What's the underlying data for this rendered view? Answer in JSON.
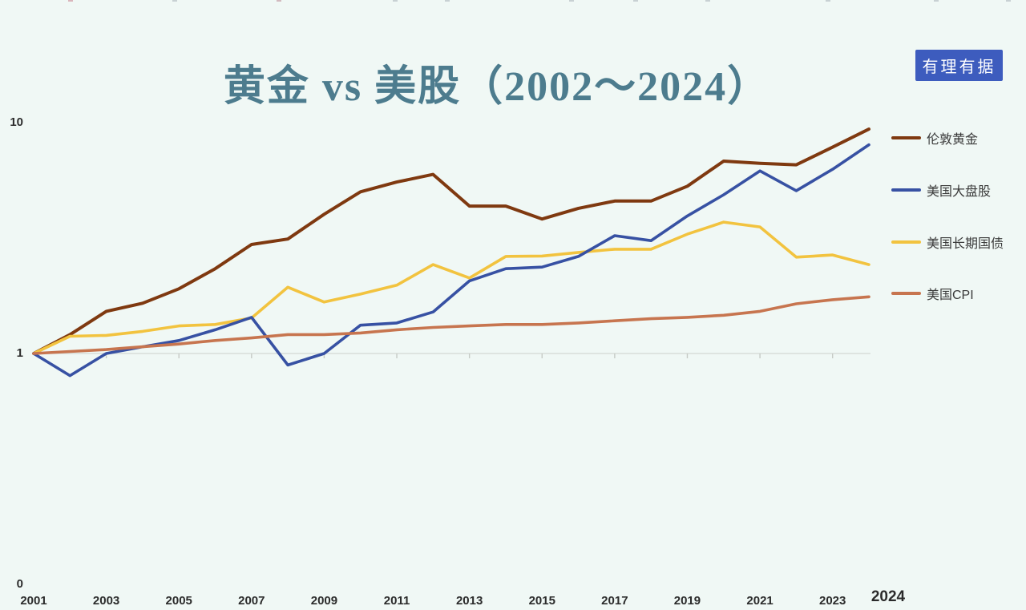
{
  "title": {
    "text": "黄金 vs 美股（2002～2024）"
  },
  "badge": {
    "text": "有理有据"
  },
  "colors": {
    "background": "#f0f8f5",
    "title": "#4d7c8e",
    "badge_bg": "#3d5cbe",
    "badge_text": "#ffffff",
    "gridline": "#d8ddd9",
    "tick": "#c6cbc6",
    "axis_text": "#2b2b2b"
  },
  "axis": {
    "y_labels": [
      "10",
      "1",
      "0"
    ]
  },
  "chart_data": {
    "type": "line",
    "title": "黄金 vs 美股（2002～2024）",
    "y_scale": "log",
    "y_axis_labels": [
      0,
      1,
      10
    ],
    "baseline_value": 1,
    "grid": "baseline-only",
    "legend_position": "right",
    "x": [
      2001,
      2002,
      2003,
      2004,
      2005,
      2006,
      2007,
      2008,
      2009,
      2010,
      2011,
      2012,
      2013,
      2014,
      2015,
      2016,
      2017,
      2018,
      2019,
      2020,
      2021,
      2022,
      2023,
      2024
    ],
    "x_tick_labels": [
      2001,
      2003,
      2005,
      2007,
      2009,
      2011,
      2013,
      2015,
      2017,
      2019,
      2021,
      2023,
      2024
    ],
    "series": [
      {
        "name": "伦敦黄金",
        "color": "#7f3910",
        "values": [
          1.0,
          1.21,
          1.53,
          1.66,
          1.92,
          2.35,
          3.0,
          3.17,
          4.07,
          5.1,
          5.63,
          6.08,
          4.42,
          4.42,
          3.88,
          4.32,
          4.65,
          4.65,
          5.4,
          6.95,
          6.8,
          6.7,
          8.0,
          9.6
        ]
      },
      {
        "name": "美国大盘股",
        "color": "#3751a3",
        "values": [
          1.0,
          0.8,
          1.0,
          1.07,
          1.14,
          1.27,
          1.44,
          0.89,
          1.0,
          1.33,
          1.36,
          1.52,
          2.08,
          2.35,
          2.39,
          2.66,
          3.28,
          3.12,
          4.0,
          4.95,
          6.3,
          5.16,
          6.4,
          8.2
        ]
      },
      {
        "name": "美国长期国债",
        "color": "#f2c33f",
        "values": [
          1.0,
          1.19,
          1.2,
          1.25,
          1.32,
          1.34,
          1.43,
          1.95,
          1.68,
          1.82,
          1.99,
          2.45,
          2.14,
          2.66,
          2.67,
          2.77,
          2.86,
          2.86,
          3.33,
          3.76,
          3.58,
          2.64,
          2.7,
          2.45
        ]
      },
      {
        "name": "美国CPI",
        "color": "#c7754f",
        "values": [
          1.0,
          1.02,
          1.04,
          1.07,
          1.1,
          1.14,
          1.17,
          1.21,
          1.21,
          1.23,
          1.27,
          1.3,
          1.32,
          1.34,
          1.34,
          1.36,
          1.39,
          1.42,
          1.44,
          1.47,
          1.53,
          1.65,
          1.72,
          1.77
        ]
      }
    ]
  },
  "artifacts": {
    "top_edge_marks": [
      {
        "x": 85,
        "color": "#d09aa4"
      },
      {
        "x": 215,
        "color": "#b7c0c4"
      },
      {
        "x": 345,
        "color": "#c4a0a8"
      },
      {
        "x": 490,
        "color": "#b7c0c4"
      },
      {
        "x": 555,
        "color": "#b7c0c4"
      },
      {
        "x": 710,
        "color": "#b7c0c4"
      },
      {
        "x": 790,
        "color": "#b7c0c4"
      },
      {
        "x": 880,
        "color": "#b7c0c4"
      },
      {
        "x": 1030,
        "color": "#b7c0c4"
      },
      {
        "x": 1165,
        "color": "#b7c0c4"
      },
      {
        "x": 1255,
        "color": "#b7c0c4"
      }
    ]
  }
}
